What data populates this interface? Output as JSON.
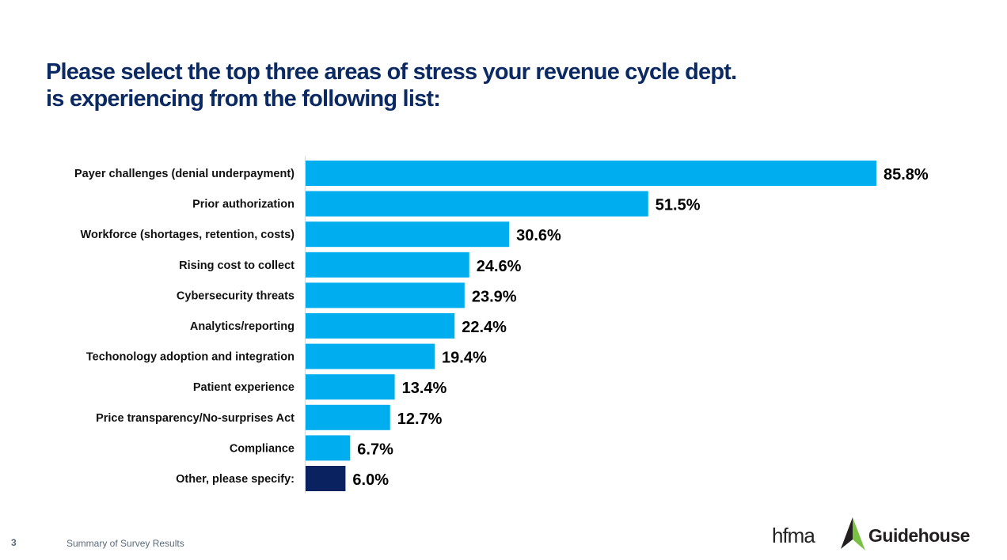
{
  "title_line1": "Please select the top three areas of stress your revenue cycle dept.",
  "title_line2": "is experiencing from the following list:",
  "chart_data": {
    "type": "bar",
    "orientation": "horizontal",
    "categories": [
      "Payer challenges (denial underpayment)",
      "Prior authorization",
      "Workforce (shortages, retention, costs)",
      "Rising cost to collect",
      "Cybersecurity threats",
      "Analytics/reporting",
      "Techonology adoption and integration",
      "Patient experience",
      "Price transparency/No-surprises Act",
      "Compliance",
      "Other, please specify:"
    ],
    "values": [
      85.8,
      51.5,
      30.6,
      24.6,
      23.9,
      22.4,
      19.4,
      13.4,
      12.7,
      6.7,
      6.0
    ],
    "data_labels": [
      "85.8%",
      "51.5%",
      "30.6%",
      "24.6%",
      "23.9%",
      "22.4%",
      "19.4%",
      "13.4%",
      "12.7%",
      "6.7%",
      "6.0%"
    ],
    "colors": [
      "#00aeef",
      "#00aeef",
      "#00aeef",
      "#00aeef",
      "#00aeef",
      "#00aeef",
      "#00aeef",
      "#00aeef",
      "#00aeef",
      "#00aeef",
      "#0b2260"
    ],
    "xlim": [
      0,
      100
    ],
    "grid": false,
    "legend": "none"
  },
  "footer": {
    "page_number": "3",
    "text": "Summary of Survey Results"
  },
  "logos": {
    "hfma": "hfma",
    "guidehouse": "Guidehouse"
  }
}
